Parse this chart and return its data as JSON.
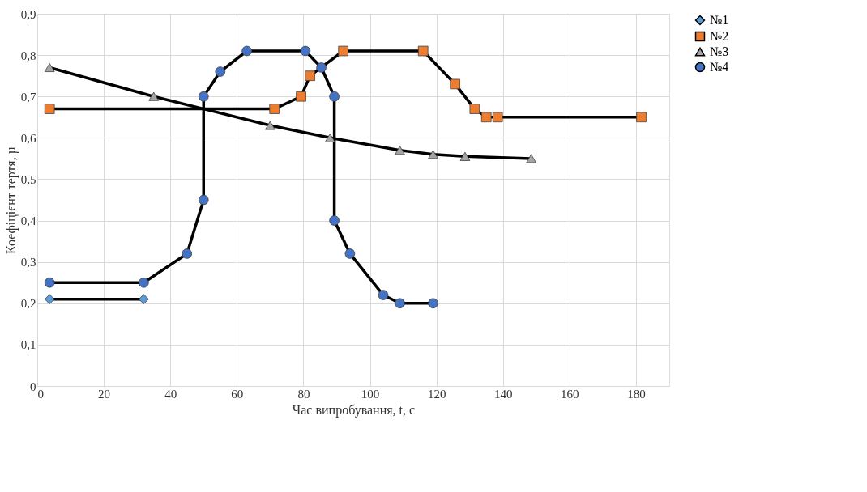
{
  "chart_data": {
    "type": "line",
    "xlabel": "Час випробування, t, с",
    "ylabel": "Коефіцієнт тертя, µ",
    "xlim": [
      0,
      190
    ],
    "xticks": [
      0,
      20,
      40,
      60,
      80,
      100,
      120,
      140,
      160,
      180
    ],
    "ylim": [
      0,
      0.9
    ],
    "yticks": [
      0,
      {
        "value": 0.1,
        "label": "0,1"
      },
      {
        "value": 0.2,
        "label": "0,2"
      },
      {
        "value": 0.3,
        "label": "0,3"
      },
      {
        "value": 0.4,
        "label": "0,4"
      },
      {
        "value": 0.5,
        "label": "0,5"
      },
      {
        "value": 0.6,
        "label": "0,6"
      },
      {
        "value": 0.7,
        "label": "0,7"
      },
      {
        "value": 0.8,
        "label": "0,8"
      },
      {
        "value": 0.9,
        "label": "0,9"
      }
    ],
    "grid": true,
    "legend": "right",
    "series": [
      {
        "name": "№1",
        "color": "#5b9bd5",
        "marker": "diamond",
        "x": [
          3.7,
          32
        ],
        "values": [
          0.21,
          0.21
        ]
      },
      {
        "name": "№2",
        "color": "#ed7d31",
        "marker": "square",
        "x": [
          3.7,
          71.3,
          79.3,
          82,
          92,
          116,
          125.6,
          131.5,
          135,
          138.4,
          181.6
        ],
        "values": [
          0.67,
          0.67,
          0.7,
          0.75,
          0.81,
          0.81,
          0.73,
          0.67,
          0.65,
          0.65,
          0.65
        ]
      },
      {
        "name": "№3",
        "color": "#a5a5a5",
        "marker": "triangle",
        "x": [
          3.7,
          35,
          70,
          88,
          109,
          119,
          128.6,
          148.5
        ],
        "values": [
          0.77,
          0.7,
          0.63,
          0.6,
          0.57,
          0.56,
          0.555,
          0.55
        ]
      },
      {
        "name": "№4",
        "color": "#4472c4",
        "marker": "circle",
        "x": [
          3.7,
          32,
          45,
          50,
          50,
          55,
          63,
          80.6,
          85.4,
          89.3,
          89.3,
          94,
          104,
          109,
          119
        ],
        "values": [
          0.25,
          0.25,
          0.32,
          0.45,
          0.7,
          0.76,
          0.81,
          0.81,
          0.77,
          0.7,
          0.4,
          0.32,
          0.22,
          0.2,
          0.2
        ]
      }
    ]
  }
}
